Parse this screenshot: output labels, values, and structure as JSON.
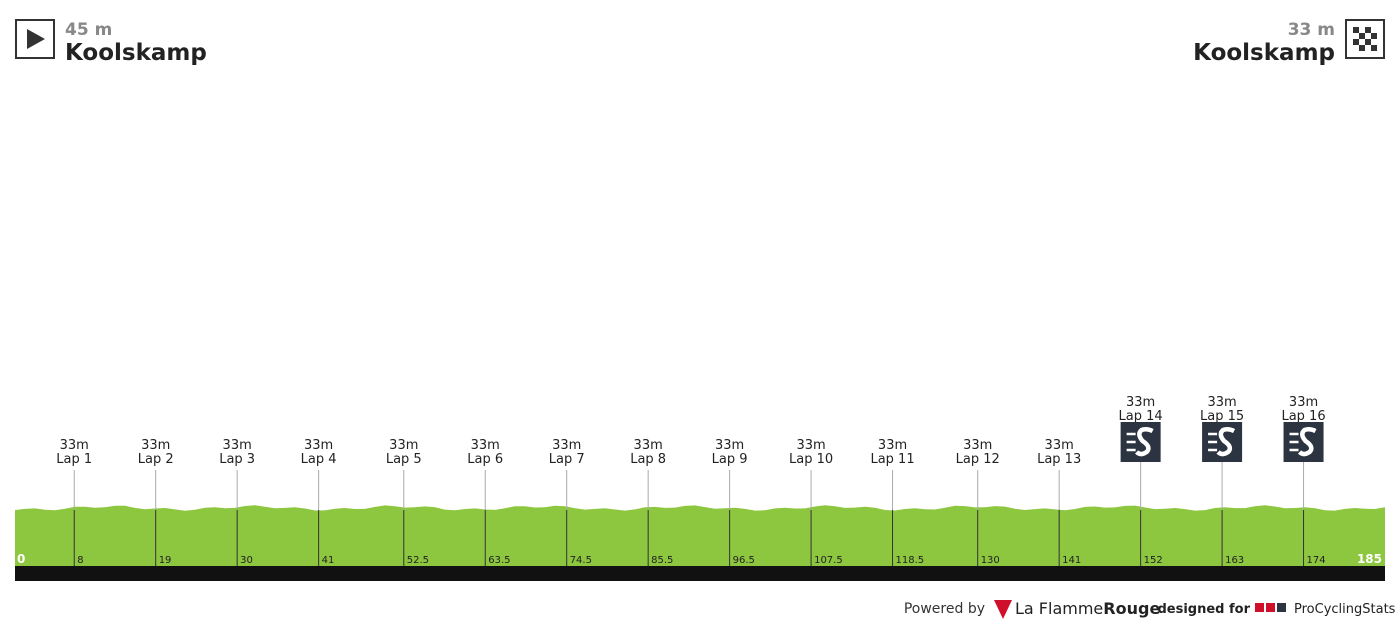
{
  "start": {
    "altitude": "45 m",
    "name": "Koolskamp"
  },
  "finish": {
    "altitude": "33 m",
    "name": "Koolskamp"
  },
  "chart_data": {
    "type": "profile",
    "xlim": [
      0,
      185
    ],
    "markers": [
      {
        "km": 8,
        "altitude": "33m",
        "label": "Lap 1",
        "sprint": false
      },
      {
        "km": 19,
        "altitude": "33m",
        "label": "Lap 2",
        "sprint": false
      },
      {
        "km": 30,
        "altitude": "33m",
        "label": "Lap 3",
        "sprint": false
      },
      {
        "km": 41,
        "altitude": "33m",
        "label": "Lap 4",
        "sprint": false
      },
      {
        "km": 52.5,
        "altitude": "33m",
        "label": "Lap 5",
        "sprint": false
      },
      {
        "km": 63.5,
        "altitude": "33m",
        "label": "Lap 6",
        "sprint": false
      },
      {
        "km": 74.5,
        "altitude": "33m",
        "label": "Lap 7",
        "sprint": false
      },
      {
        "km": 85.5,
        "altitude": "33m",
        "label": "Lap 8",
        "sprint": false
      },
      {
        "km": 96.5,
        "altitude": "33m",
        "label": "Lap 9",
        "sprint": false
      },
      {
        "km": 107.5,
        "altitude": "33m",
        "label": "Lap 10",
        "sprint": false
      },
      {
        "km": 118.5,
        "altitude": "33m",
        "label": "Lap 11",
        "sprint": false
      },
      {
        "km": 130,
        "altitude": "33m",
        "label": "Lap 12",
        "sprint": false
      },
      {
        "km": 141,
        "altitude": "33m",
        "label": "Lap 13",
        "sprint": false
      },
      {
        "km": 152,
        "altitude": "33m",
        "label": "Lap 14",
        "sprint": true
      },
      {
        "km": 163,
        "altitude": "33m",
        "label": "Lap 15",
        "sprint": true
      },
      {
        "km": 174,
        "altitude": "33m",
        "label": "Lap 16",
        "sprint": true
      }
    ]
  },
  "footer": {
    "powered": "Powered by",
    "brand_a": "La Flamme",
    "brand_b": "Rouge",
    "designed": "designed for",
    "pcs": "ProCyclingStats"
  }
}
